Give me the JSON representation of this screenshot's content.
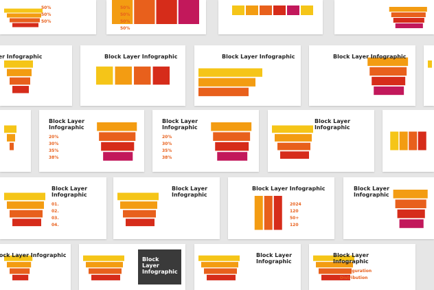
{
  "slides": [
    {
      "labels": [
        "50%",
        "50%",
        "50%"
      ]
    },
    {
      "labels": [
        "50%",
        "50%",
        "50%",
        "50%"
      ]
    },
    {},
    {},
    {
      "title": "Block Layer Infographic"
    },
    {
      "title": "Block Layer Infographic"
    },
    {
      "title": "Block Layer Infographic"
    },
    {
      "title": "Block Layer Infographic"
    },
    {},
    {},
    {
      "title": "Block Layer Infographic",
      "labels": [
        "20%",
        "30%",
        "35%",
        "38%"
      ]
    },
    {
      "title": "Block Layer Infographic",
      "labels": [
        "20%",
        "30%",
        "35%",
        "38%"
      ]
    },
    {
      "title": "Block Layer Infographic"
    },
    {},
    {
      "title": "Block Layer Infographic",
      "labels": [
        "01.",
        "02.",
        "03.",
        "04."
      ]
    },
    {
      "title": "Block Layer Infographic"
    },
    {
      "title": "Block Layer Infographic",
      "labels": [
        "2024",
        "120",
        "50+",
        "120"
      ]
    },
    {
      "title": "Block Layer Infographic"
    },
    {
      "title": "Block Layer Infographic"
    },
    {
      "title": "Block Layer Infographic"
    },
    {
      "title": "Block Layer Infographic"
    },
    {
      "title": "Block Layer Infographic",
      "labels": [
        "Configuration",
        "Distribution"
      ]
    }
  ]
}
